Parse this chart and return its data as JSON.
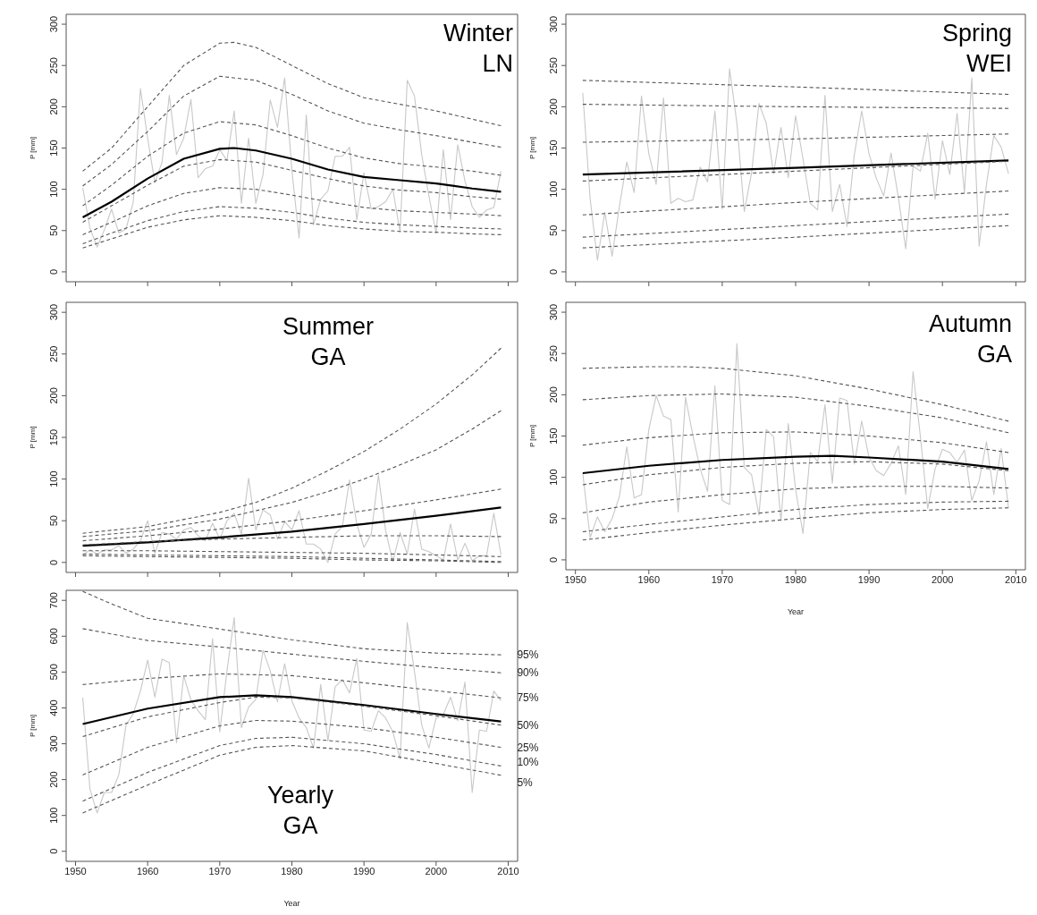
{
  "chart_data": [
    {
      "type": "line",
      "title": "Winter",
      "subtitle": "LN",
      "ylabel": "P [mm]",
      "xlim": [
        1948.7,
        2011.3
      ],
      "ylim": [
        -12,
        312
      ],
      "xticks": [
        1950,
        1960,
        1970,
        1980,
        1990,
        2000,
        2010
      ],
      "yticks": [
        0,
        50,
        100,
        150,
        200,
        250,
        300
      ],
      "tick_labels": "y",
      "x": [
        1951,
        1952,
        1953,
        1954,
        1955,
        1956,
        1957,
        1958,
        1959,
        1960,
        1961,
        1962,
        1963,
        1964,
        1965,
        1966,
        1967,
        1968,
        1969,
        1970,
        1971,
        1972,
        1973,
        1974,
        1975,
        1976,
        1977,
        1978,
        1979,
        1980,
        1981,
        1982,
        1983,
        1984,
        1985,
        1986,
        1987,
        1988,
        1989,
        1990,
        1991,
        1992,
        1993,
        1994,
        1995,
        1996,
        1997,
        1998,
        1999,
        2000,
        2001,
        2002,
        2003,
        2004,
        2005,
        2006,
        2007,
        2008,
        2009
      ],
      "series": [
        {
          "color": "#c8c8c8",
          "line_style": "solid",
          "values": [
            102,
            53,
            30,
            51,
            76,
            47,
            52,
            84,
            222,
            162,
            108,
            133,
            214,
            142,
            162,
            209,
            114,
            125,
            128,
            148,
            135,
            195,
            83,
            162,
            83,
            118,
            208,
            175,
            235,
            123,
            41,
            190,
            57,
            88,
            98,
            140,
            140,
            151,
            63,
            120,
            76,
            79,
            85,
            100,
            48,
            232,
            213,
            142,
            92,
            47,
            148,
            63,
            154,
            110,
            79,
            66,
            75,
            78,
            122
          ]
        },
        {
          "color": "#000000",
          "line_style": "solid",
          "x": [
            1951,
            1955,
            1960,
            1965,
            1970,
            1972,
            1975,
            1980,
            1985,
            1990,
            1995,
            2000,
            2005,
            2009
          ],
          "values": [
            66,
            85,
            113,
            137,
            149,
            150,
            147,
            137,
            124,
            115,
            111,
            107,
            101,
            97
          ]
        },
        {
          "color": "#555555",
          "line_style": "dashed",
          "x": [
            1951,
            1955,
            1960,
            1965,
            1970,
            1972,
            1975,
            1980,
            1985,
            1990,
            1995,
            2000,
            2005,
            2009
          ],
          "values": [
            122,
            150,
            200,
            250,
            277,
            278,
            272,
            250,
            228,
            211,
            203,
            195,
            185,
            177
          ]
        },
        {
          "color": "#555555",
          "line_style": "dashed",
          "x": [
            1951,
            1955,
            1960,
            1965,
            1970,
            1975,
            1980,
            1985,
            1990,
            1995,
            2000,
            2005,
            2009
          ],
          "values": [
            104,
            130,
            170,
            213,
            237,
            232,
            215,
            195,
            180,
            172,
            165,
            157,
            151
          ]
        },
        {
          "color": "#555555",
          "line_style": "dashed",
          "x": [
            1951,
            1955,
            1960,
            1965,
            1970,
            1975,
            1980,
            1985,
            1990,
            1995,
            2000,
            2005,
            2009
          ],
          "values": [
            80,
            105,
            140,
            168,
            182,
            178,
            165,
            150,
            138,
            131,
            127,
            122,
            117
          ]
        },
        {
          "color": "#555555",
          "line_style": "dashed",
          "x": [
            1951,
            1955,
            1960,
            1965,
            1970,
            1975,
            1980,
            1985,
            1990,
            1995,
            2000,
            2005,
            2009
          ],
          "values": [
            60,
            80,
            105,
            128,
            136,
            133,
            123,
            113,
            104,
            99,
            96,
            91,
            88
          ]
        },
        {
          "color": "#555555",
          "line_style": "dashed",
          "x": [
            1951,
            1955,
            1960,
            1965,
            1970,
            1975,
            1980,
            1985,
            1990,
            1995,
            2000,
            2005,
            2009
          ],
          "values": [
            45,
            60,
            80,
            95,
            102,
            100,
            93,
            85,
            78,
            74,
            72,
            70,
            68
          ]
        },
        {
          "color": "#555555",
          "line_style": "dashed",
          "x": [
            1951,
            1955,
            1960,
            1965,
            1970,
            1975,
            1980,
            1985,
            1990,
            1995,
            2000,
            2005,
            2009
          ],
          "values": [
            34,
            47,
            62,
            73,
            79,
            77,
            72,
            65,
            60,
            57,
            55,
            53,
            52
          ]
        },
        {
          "color": "#555555",
          "line_style": "dashed",
          "x": [
            1951,
            1955,
            1960,
            1965,
            1970,
            1975,
            1980,
            1985,
            1990,
            1995,
            2000,
            2005,
            2009
          ],
          "values": [
            29,
            40,
            54,
            63,
            68,
            66,
            62,
            56,
            52,
            49,
            48,
            46,
            45
          ]
        }
      ]
    },
    {
      "type": "line",
      "title": "Spring",
      "subtitle": "WEI",
      "ylabel": "P [mm]",
      "xlim": [
        1948.7,
        2011.3
      ],
      "ylim": [
        -12,
        312
      ],
      "xticks": [
        1950,
        1960,
        1970,
        1980,
        1990,
        2000,
        2010
      ],
      "yticks": [
        0,
        50,
        100,
        150,
        200,
        250,
        300
      ],
      "tick_labels": "y",
      "x": [
        1951,
        1952,
        1953,
        1954,
        1955,
        1956,
        1957,
        1958,
        1959,
        1960,
        1961,
        1962,
        1963,
        1964,
        1965,
        1966,
        1967,
        1968,
        1969,
        1970,
        1971,
        1972,
        1973,
        1974,
        1975,
        1976,
        1977,
        1978,
        1979,
        1980,
        1981,
        1982,
        1983,
        1984,
        1985,
        1986,
        1987,
        1988,
        1989,
        1990,
        1991,
        1992,
        1993,
        1994,
        1995,
        1996,
        1997,
        1998,
        1999,
        2000,
        2001,
        2002,
        2003,
        2004,
        2005,
        2006,
        2007,
        2008,
        2009
      ],
      "series": [
        {
          "color": "#c8c8c8",
          "line_style": "solid",
          "values": [
            217,
            89,
            14,
            72,
            19,
            80,
            133,
            96,
            213,
            143,
            106,
            211,
            83,
            89,
            85,
            87,
            127,
            109,
            195,
            76,
            246,
            180,
            73,
            120,
            204,
            180,
            119,
            175,
            114,
            189,
            137,
            83,
            75,
            214,
            73,
            106,
            55,
            142,
            195,
            143,
            113,
            92,
            144,
            90,
            28,
            128,
            122,
            168,
            88,
            159,
            118,
            192,
            96,
            235,
            31,
            106,
            165,
            151,
            119
          ]
        },
        {
          "color": "#000000",
          "line_style": "solid",
          "x": [
            1951,
            1980,
            2009
          ],
          "values": [
            118,
            126,
            135
          ]
        },
        {
          "color": "#555555",
          "line_style": "dashed",
          "x": [
            1951,
            1980,
            2009
          ],
          "values": [
            232,
            224,
            215
          ]
        },
        {
          "color": "#555555",
          "line_style": "dashed",
          "x": [
            1951,
            1980,
            2009
          ],
          "values": [
            203,
            200,
            198
          ]
        },
        {
          "color": "#555555",
          "line_style": "dashed",
          "x": [
            1951,
            1980,
            2009
          ],
          "values": [
            157,
            161,
            167
          ]
        },
        {
          "color": "#555555",
          "line_style": "dashed",
          "x": [
            1951,
            1980,
            2009
          ],
          "values": [
            110,
            122,
            134
          ]
        },
        {
          "color": "#555555",
          "line_style": "dashed",
          "x": [
            1951,
            1980,
            2009
          ],
          "values": [
            69,
            84,
            98
          ]
        },
        {
          "color": "#555555",
          "line_style": "dashed",
          "x": [
            1951,
            1980,
            2009
          ],
          "values": [
            42,
            56,
            70
          ]
        },
        {
          "color": "#555555",
          "line_style": "dashed",
          "x": [
            1951,
            1980,
            2009
          ],
          "values": [
            29,
            42,
            56
          ]
        }
      ]
    },
    {
      "type": "line",
      "title": "Summer",
      "subtitle": "GA",
      "ylabel": "P [mm]",
      "xlim": [
        1948.7,
        2011.3
      ],
      "ylim": [
        -12,
        312
      ],
      "xticks": [
        1950,
        1960,
        1970,
        1980,
        1990,
        2000,
        2010
      ],
      "yticks": [
        0,
        50,
        100,
        150,
        200,
        250,
        300
      ],
      "tick_labels": "y",
      "x": [
        1951,
        1952,
        1953,
        1954,
        1955,
        1956,
        1957,
        1958,
        1959,
        1960,
        1961,
        1962,
        1963,
        1964,
        1965,
        1966,
        1967,
        1968,
        1969,
        1970,
        1971,
        1972,
        1973,
        1974,
        1975,
        1976,
        1977,
        1978,
        1979,
        1980,
        1981,
        1982,
        1983,
        1984,
        1985,
        1986,
        1987,
        1988,
        1989,
        1990,
        1991,
        1992,
        1993,
        1994,
        1995,
        1996,
        1997,
        1998,
        1999,
        2000,
        2001,
        2002,
        2003,
        2004,
        2005,
        2006,
        2007,
        2008,
        2009
      ],
      "series": [
        {
          "color": "#c8c8c8",
          "line_style": "solid",
          "values": [
            9,
            15,
            10,
            15,
            15,
            20,
            11,
            16,
            26,
            50,
            11,
            36,
            34,
            28,
            39,
            42,
            32,
            26,
            47,
            28,
            50,
            59,
            34,
            101,
            39,
            63,
            57,
            28,
            49,
            39,
            62,
            22,
            22,
            16,
            0,
            34,
            43,
            99,
            46,
            18,
            34,
            105,
            38,
            1,
            36,
            10,
            64,
            16,
            13,
            8,
            3,
            46,
            3,
            23,
            2,
            8,
            8,
            59,
            9
          ]
        },
        {
          "color": "#000000",
          "line_style": "solid",
          "x": [
            1951,
            1960,
            1970,
            1980,
            1990,
            2000,
            2009
          ],
          "values": [
            20,
            24,
            30,
            37,
            46,
            56,
            66
          ]
        },
        {
          "color": "#555555",
          "line_style": "dashed",
          "x": [
            1951,
            1960,
            1970,
            1975,
            1980,
            1985,
            1990,
            1995,
            2000,
            2005,
            2009
          ],
          "values": [
            35,
            43,
            60,
            72,
            89,
            110,
            133,
            160,
            190,
            225,
            257
          ]
        },
        {
          "color": "#555555",
          "line_style": "dashed",
          "x": [
            1951,
            1960,
            1970,
            1980,
            1985,
            1990,
            1995,
            2000,
            2005,
            2009
          ],
          "values": [
            31,
            38,
            52,
            72,
            85,
            100,
            117,
            135,
            160,
            182
          ]
        },
        {
          "color": "#555555",
          "line_style": "dashed",
          "x": [
            1951,
            1960,
            1970,
            1980,
            1990,
            2000,
            2009
          ],
          "values": [
            26,
            32,
            40,
            50,
            62,
            75,
            88
          ]
        },
        {
          "color": "#555555",
          "line_style": "dashed",
          "x": [
            1951,
            1960,
            1970,
            1980,
            1990,
            2000,
            2009
          ],
          "values": [
            21,
            25,
            28,
            30,
            32,
            32,
            31
          ]
        },
        {
          "color": "#555555",
          "line_style": "dashed",
          "x": [
            1951,
            1960,
            1970,
            1980,
            1990,
            2000,
            2009
          ],
          "values": [
            14,
            14,
            13,
            12,
            11,
            9,
            7
          ]
        },
        {
          "color": "#555555",
          "line_style": "dashed",
          "x": [
            1951,
            1960,
            1970,
            1980,
            1990,
            2000,
            2009
          ],
          "values": [
            10,
            9,
            8,
            7,
            5,
            3,
            1
          ]
        },
        {
          "color": "#555555",
          "line_style": "dashed",
          "x": [
            1951,
            1960,
            1970,
            1980,
            1990,
            2000,
            2009
          ],
          "values": [
            8,
            7,
            6,
            5,
            3,
            2,
            0
          ]
        }
      ]
    },
    {
      "type": "line",
      "title": "Autumn",
      "subtitle": "GA",
      "xlabel": "Year",
      "ylabel": "P [mm]",
      "xlim": [
        1948.7,
        2011.3
      ],
      "ylim": [
        -12,
        312
      ],
      "xticks": [
        1950,
        1960,
        1970,
        1980,
        1990,
        2000,
        2010
      ],
      "yticks": [
        0,
        50,
        100,
        150,
        200,
        250,
        300
      ],
      "x": [
        1951,
        1952,
        1953,
        1954,
        1955,
        1956,
        1957,
        1958,
        1959,
        1960,
        1961,
        1962,
        1963,
        1964,
        1965,
        1966,
        1967,
        1968,
        1969,
        1970,
        1971,
        1972,
        1973,
        1974,
        1975,
        1976,
        1977,
        1978,
        1979,
        1980,
        1981,
        1982,
        1983,
        1984,
        1985,
        1986,
        1987,
        1988,
        1989,
        1990,
        1991,
        1992,
        1993,
        1994,
        1995,
        1996,
        1997,
        1998,
        1999,
        2000,
        2001,
        2002,
        2003,
        2004,
        2005,
        2006,
        2007,
        2008,
        2009
      ],
      "series": [
        {
          "color": "#c8c8c8",
          "line_style": "solid",
          "values": [
            105,
            27,
            52,
            34,
            50,
            77,
            137,
            75,
            79,
            158,
            199,
            174,
            170,
            58,
            197,
            151,
            110,
            83,
            211,
            72,
            67,
            262,
            112,
            103,
            54,
            158,
            149,
            47,
            165,
            85,
            32,
            130,
            119,
            188,
            93,
            196,
            193,
            116,
            168,
            124,
            108,
            102,
            117,
            138,
            79,
            228,
            149,
            62,
            110,
            134,
            130,
            118,
            133,
            72,
            96,
            143,
            79,
            135,
            63
          ]
        },
        {
          "color": "#000000",
          "line_style": "solid",
          "x": [
            1951,
            1960,
            1970,
            1980,
            1985,
            1990,
            2000,
            2009
          ],
          "values": [
            105,
            114,
            121,
            125,
            126,
            124,
            119,
            110
          ]
        },
        {
          "color": "#555555",
          "line_style": "dashed",
          "x": [
            1951,
            1960,
            1965,
            1970,
            1980,
            1990,
            2000,
            2009
          ],
          "values": [
            232,
            234,
            234,
            232,
            223,
            207,
            188,
            168
          ]
        },
        {
          "color": "#555555",
          "line_style": "dashed",
          "x": [
            1951,
            1960,
            1970,
            1980,
            1990,
            2000,
            2009
          ],
          "values": [
            194,
            199,
            201,
            197,
            186,
            172,
            154
          ]
        },
        {
          "color": "#555555",
          "line_style": "dashed",
          "x": [
            1951,
            1960,
            1970,
            1980,
            1990,
            2000,
            2009
          ],
          "values": [
            139,
            148,
            154,
            155,
            150,
            142,
            130
          ]
        },
        {
          "color": "#555555",
          "line_style": "dashed",
          "x": [
            1951,
            1960,
            1970,
            1980,
            1990,
            2000,
            2009
          ],
          "values": [
            91,
            103,
            112,
            117,
            119,
            116,
            108
          ]
        },
        {
          "color": "#555555",
          "line_style": "dashed",
          "x": [
            1951,
            1960,
            1970,
            1980,
            1990,
            2000,
            2009
          ],
          "values": [
            57,
            70,
            79,
            86,
            89,
            89,
            87
          ]
        },
        {
          "color": "#555555",
          "line_style": "dashed",
          "x": [
            1951,
            1960,
            1970,
            1980,
            1990,
            2000,
            2009
          ],
          "values": [
            34,
            43,
            52,
            61,
            67,
            70,
            71
          ]
        },
        {
          "color": "#555555",
          "line_style": "dashed",
          "x": [
            1951,
            1960,
            1970,
            1980,
            1990,
            2000,
            2009
          ],
          "values": [
            24,
            33,
            42,
            50,
            57,
            61,
            63
          ]
        }
      ]
    },
    {
      "type": "line",
      "title": "Yearly",
      "subtitle": "GA",
      "xlabel": "Year",
      "ylabel": "P [mm]",
      "xlim": [
        1948.7,
        2011.3
      ],
      "ylim": [
        -28,
        728
      ],
      "xticks": [
        1950,
        1960,
        1970,
        1980,
        1990,
        2000,
        2010
      ],
      "yticks": [
        0,
        100,
        200,
        300,
        400,
        500,
        600,
        700
      ],
      "x": [
        1951,
        1952,
        1953,
        1954,
        1955,
        1956,
        1957,
        1958,
        1959,
        1960,
        1961,
        1962,
        1963,
        1964,
        1965,
        1966,
        1967,
        1968,
        1969,
        1970,
        1971,
        1972,
        1973,
        1974,
        1975,
        1976,
        1977,
        1978,
        1979,
        1980,
        1981,
        1982,
        1983,
        1984,
        1985,
        1986,
        1987,
        1988,
        1989,
        1990,
        1991,
        1992,
        1993,
        1994,
        1995,
        1996,
        1997,
        1998,
        1999,
        2000,
        2001,
        2002,
        2003,
        2004,
        2005,
        2006,
        2007,
        2008,
        2009
      ],
      "series": [
        {
          "color": "#c8c8c8",
          "line_style": "solid",
          "values": [
            429,
            174,
            107,
            164,
            164,
            213,
            352,
            384,
            447,
            533,
            430,
            536,
            526,
            303,
            490,
            422,
            392,
            367,
            593,
            333,
            503,
            652,
            345,
            402,
            424,
            561,
            503,
            417,
            523,
            420,
            372,
            345,
            288,
            465,
            308,
            459,
            479,
            442,
            538,
            338,
            335,
            392,
            372,
            333,
            258,
            638,
            502,
            353,
            288,
            372,
            382,
            430,
            364,
            472,
            164,
            338,
            335,
            447,
            420
          ]
        },
        {
          "color": "#000000",
          "line_style": "solid",
          "x": [
            1951,
            1960,
            1970,
            1975,
            1980,
            1990,
            2000,
            2009
          ],
          "values": [
            355,
            398,
            430,
            435,
            430,
            408,
            383,
            362
          ]
        },
        {
          "name": "95%",
          "color": "#555555",
          "line_style": "dashed",
          "x": [
            1951,
            1955,
            1960,
            1970,
            1980,
            1990,
            2000,
            2009
          ],
          "values": [
            725,
            690,
            650,
            620,
            590,
            565,
            553,
            548
          ]
        },
        {
          "name": "90%",
          "color": "#555555",
          "line_style": "dashed",
          "x": [
            1951,
            1960,
            1970,
            1980,
            1990,
            2000,
            2009
          ],
          "values": [
            621,
            588,
            570,
            550,
            530,
            512,
            498
          ]
        },
        {
          "name": "75%",
          "color": "#555555",
          "line_style": "dashed",
          "x": [
            1951,
            1960,
            1970,
            1980,
            1990,
            2000,
            2009
          ],
          "values": [
            465,
            482,
            495,
            490,
            470,
            448,
            428
          ]
        },
        {
          "name": "50%",
          "color": "#555555",
          "line_style": "dashed",
          "x": [
            1951,
            1960,
            1970,
            1975,
            1980,
            1990,
            2000,
            2009
          ],
          "values": [
            320,
            375,
            415,
            430,
            428,
            405,
            378,
            352
          ]
        },
        {
          "name": "25%",
          "color": "#555555",
          "line_style": "dashed",
          "x": [
            1951,
            1960,
            1970,
            1975,
            1980,
            1990,
            2000,
            2009
          ],
          "values": [
            213,
            290,
            350,
            365,
            363,
            345,
            318,
            290
          ]
        },
        {
          "name": "10%",
          "color": "#555555",
          "line_style": "dashed",
          "x": [
            1951,
            1960,
            1970,
            1975,
            1980,
            1990,
            2000,
            2009
          ],
          "values": [
            140,
            220,
            295,
            315,
            318,
            300,
            270,
            238
          ]
        },
        {
          "name": "5%",
          "color": "#555555",
          "line_style": "dashed",
          "x": [
            1951,
            1960,
            1970,
            1975,
            1980,
            1990,
            2000,
            2009
          ],
          "values": [
            107,
            185,
            268,
            290,
            295,
            280,
            245,
            212
          ]
        }
      ]
    }
  ]
}
